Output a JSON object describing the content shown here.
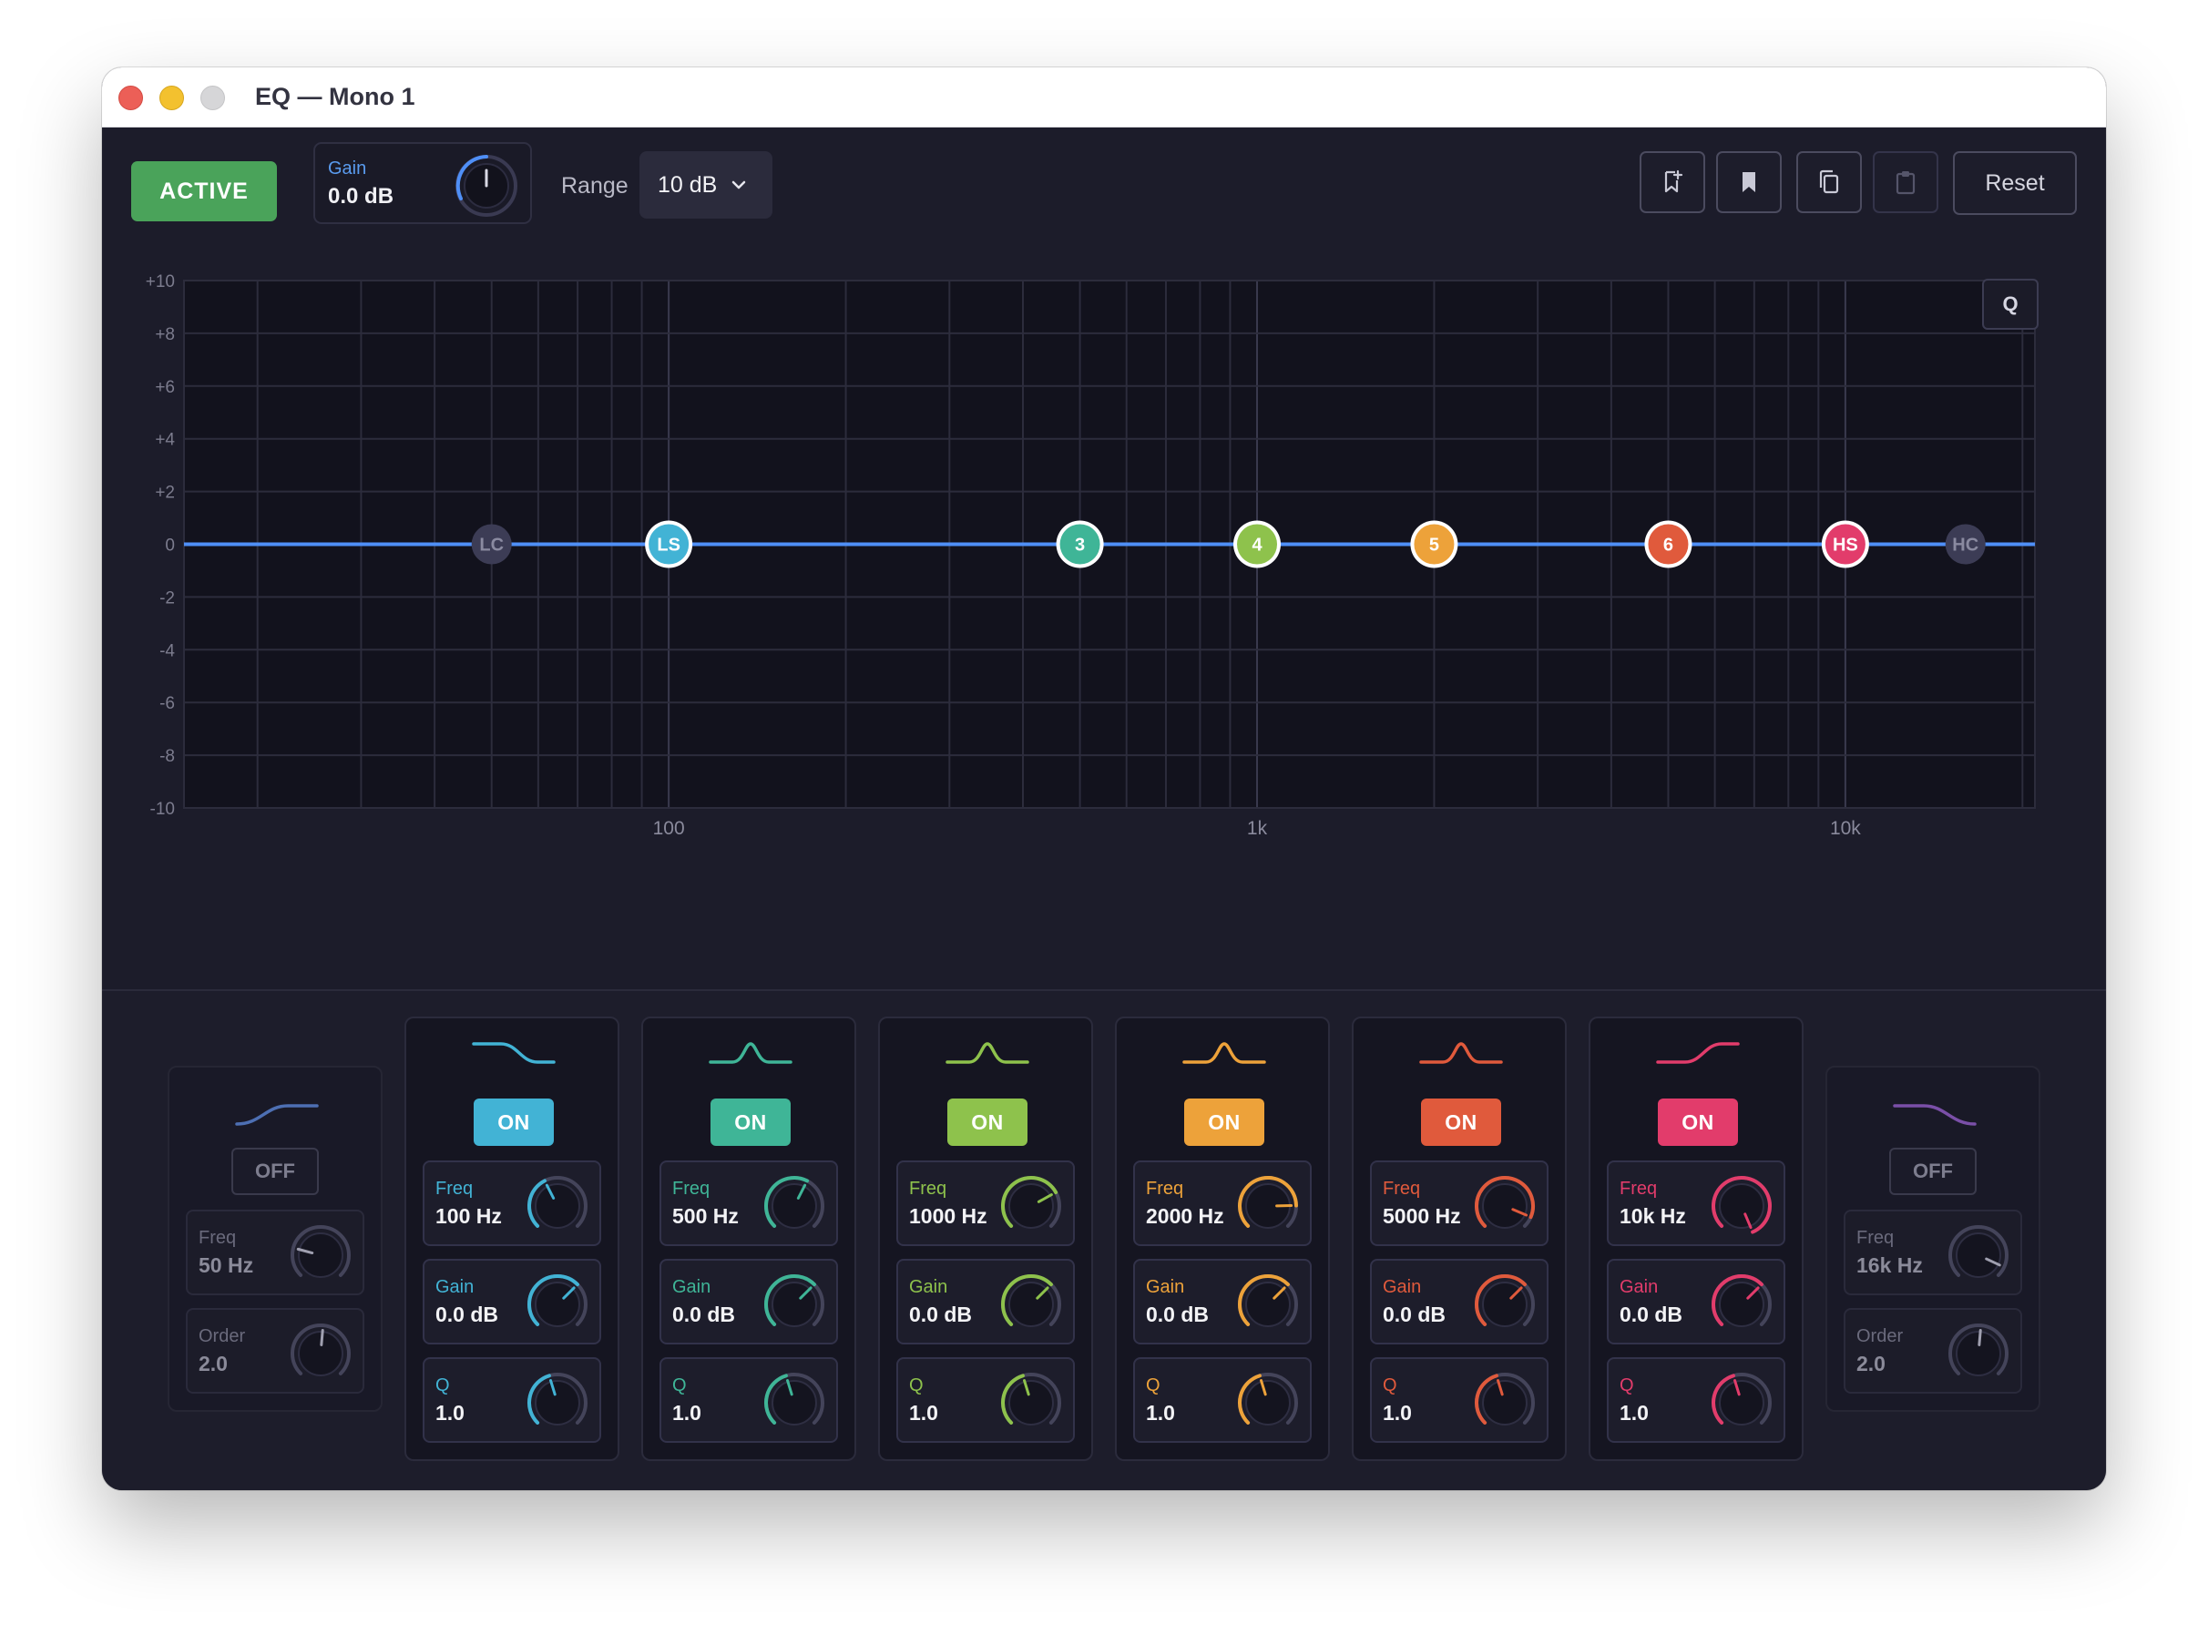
{
  "window": {
    "title": "EQ — Mono 1"
  },
  "toolbar": {
    "active_label": "ACTIVE",
    "gain_label": "Gain",
    "gain_value": "0.0 dB",
    "range_label": "Range",
    "range_value": "10 dB",
    "reset_label": "Reset",
    "icons": [
      "add-bookmark-icon",
      "bookmark-icon",
      "copy-icon",
      "paste-icon"
    ]
  },
  "graph": {
    "y_ticks": [
      "+10",
      "+8",
      "+6",
      "+4",
      "+2",
      "0",
      "-2",
      "-4",
      "-6",
      "-8",
      "-10"
    ],
    "x_ticks": [
      "100",
      "1k",
      "10k"
    ],
    "q_label": "Q",
    "curve_color": "#4f8ff7",
    "nodes": [
      {
        "label": "LC",
        "freq": 50,
        "color": "#3c3c55",
        "enabled": false
      },
      {
        "label": "LS",
        "freq": 100,
        "color": "#42b3d5",
        "enabled": true
      },
      {
        "label": "3",
        "freq": 500,
        "color": "#3fb597",
        "enabled": true
      },
      {
        "label": "4",
        "freq": 1000,
        "color": "#8ec24c",
        "enabled": true
      },
      {
        "label": "5",
        "freq": 2000,
        "color": "#eda23a",
        "enabled": true
      },
      {
        "label": "6",
        "freq": 5000,
        "color": "#e05a3c",
        "enabled": true
      },
      {
        "label": "HS",
        "freq": 10000,
        "color": "#e23c6b",
        "enabled": true
      },
      {
        "label": "HC",
        "freq": 16000,
        "color": "#3c3c55",
        "enabled": false
      }
    ]
  },
  "bands": [
    {
      "id": "lowcut",
      "type": "cut",
      "state": "OFF",
      "color": "#4d6fb3",
      "params": [
        {
          "label": "Freq",
          "value": "50 Hz"
        },
        {
          "label": "Order",
          "value": "2.0"
        }
      ]
    },
    {
      "id": "lowshelf",
      "type": "full",
      "state": "ON",
      "color": "#42b3d5",
      "params": [
        {
          "label": "Freq",
          "value": "100 Hz"
        },
        {
          "label": "Gain",
          "value": "0.0 dB"
        },
        {
          "label": "Q",
          "value": "1.0"
        }
      ]
    },
    {
      "id": "band3",
      "type": "full",
      "state": "ON",
      "color": "#3fb597",
      "params": [
        {
          "label": "Freq",
          "value": "500 Hz"
        },
        {
          "label": "Gain",
          "value": "0.0 dB"
        },
        {
          "label": "Q",
          "value": "1.0"
        }
      ]
    },
    {
      "id": "band4",
      "type": "full",
      "state": "ON",
      "color": "#8ec24c",
      "params": [
        {
          "label": "Freq",
          "value": "1000 Hz"
        },
        {
          "label": "Gain",
          "value": "0.0 dB"
        },
        {
          "label": "Q",
          "value": "1.0"
        }
      ]
    },
    {
      "id": "band5",
      "type": "full",
      "state": "ON",
      "color": "#eda23a",
      "params": [
        {
          "label": "Freq",
          "value": "2000 Hz"
        },
        {
          "label": "Gain",
          "value": "0.0 dB"
        },
        {
          "label": "Q",
          "value": "1.0"
        }
      ]
    },
    {
      "id": "band6",
      "type": "full",
      "state": "ON",
      "color": "#e05a3c",
      "params": [
        {
          "label": "Freq",
          "value": "5000 Hz"
        },
        {
          "label": "Gain",
          "value": "0.0 dB"
        },
        {
          "label": "Q",
          "value": "1.0"
        }
      ]
    },
    {
      "id": "highshelf",
      "type": "full",
      "state": "ON",
      "color": "#e23c6b",
      "params": [
        {
          "label": "Freq",
          "value": "10k Hz"
        },
        {
          "label": "Gain",
          "value": "0.0 dB"
        },
        {
          "label": "Q",
          "value": "1.0"
        }
      ]
    },
    {
      "id": "highcut",
      "type": "cut",
      "state": "OFF",
      "color": "#7a4fa8",
      "params": [
        {
          "label": "Freq",
          "value": "16k Hz"
        },
        {
          "label": "Order",
          "value": "2.0"
        }
      ]
    }
  ]
}
